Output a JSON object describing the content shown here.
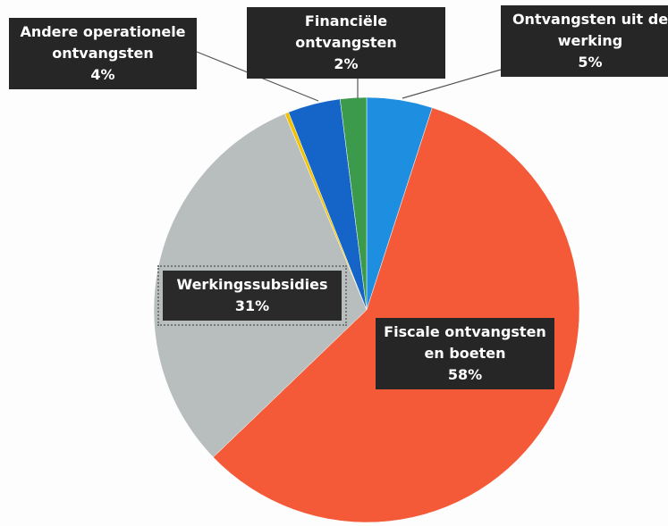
{
  "chart_data": {
    "type": "pie",
    "categories": [
      "Ontvangsten uit de werking",
      "Fiscale ontvangsten en boeten",
      "Werkingssubsidies",
      null,
      "Andere operationele ontvangsten",
      "Financiële ontvangsten"
    ],
    "values": [
      5,
      58,
      31,
      0.3,
      4,
      2
    ],
    "value_labels": [
      "5%",
      "58%",
      "31%",
      null,
      "4%",
      "2%"
    ],
    "colors": [
      "#1e8fe0",
      "#f45a38",
      "#b8bebe",
      "#f2c200",
      "#1565c8",
      "#3c9a4c"
    ]
  }
}
